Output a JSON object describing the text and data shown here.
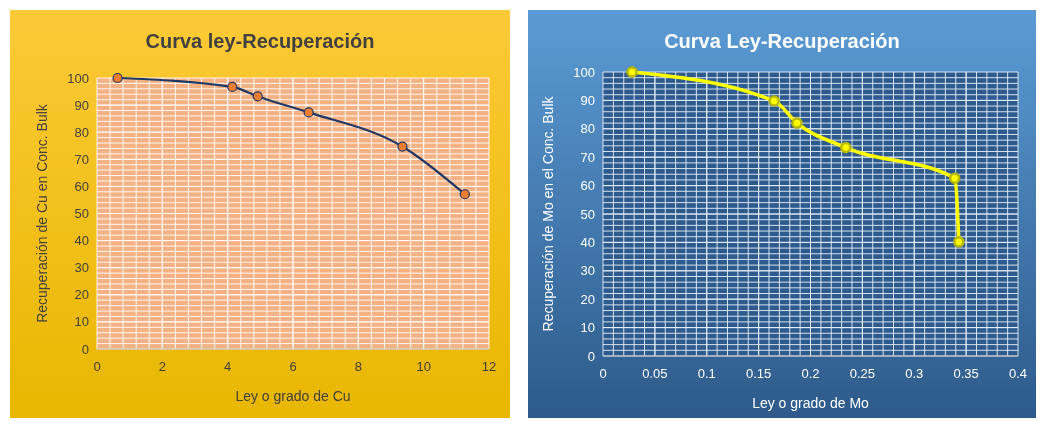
{
  "chart_data": [
    {
      "type": "line",
      "title": "Curva ley-Recuperación",
      "xlabel": "Ley o grado de Cu",
      "ylabel": "Recuperación de Cu en Conc. Bulk",
      "xlim": [
        0,
        12
      ],
      "xticks": [
        0,
        2,
        4,
        6,
        8,
        10,
        12
      ],
      "ylim": [
        0,
        100
      ],
      "yticks": [
        0,
        10,
        20,
        30,
        40,
        50,
        60,
        70,
        80,
        90,
        100
      ],
      "grid": true,
      "marker": "circle",
      "series": [
        {
          "color": "#1f3864",
          "colors": [
            "#ed7d31",
            "#ed7d31",
            "#ed7d31",
            "#ed7d31",
            "#ed7d31",
            "#ed7d31"
          ],
          "x": [
            0.63,
            4.14,
            4.92,
            6.48,
            9.35,
            11.26
          ],
          "values": [
            100,
            96.7,
            93.2,
            87.3,
            74.7,
            57.1
          ]
        }
      ]
    },
    {
      "type": "line",
      "title": "Curva Ley-Recuperación",
      "xlabel": "Ley o grado de Mo",
      "ylabel": "Recuperación de Mo en el Conc. Bulk",
      "xlim": [
        0,
        0.4
      ],
      "xticks": [
        0,
        0.05,
        0.1,
        0.15,
        0.2,
        0.25,
        0.3,
        0.35,
        0.4
      ],
      "ylim": [
        0,
        100
      ],
      "yticks": [
        0,
        10,
        20,
        30,
        40,
        50,
        60,
        70,
        80,
        90,
        100
      ],
      "grid": true,
      "marker": "circle",
      "series": [
        {
          "color": "#ffff00",
          "colors": [
            "#ffff00",
            "#ffff00",
            "#ffff00",
            "#ffff00",
            "#ffff00",
            "#ffff00"
          ],
          "x": [
            0.028,
            0.165,
            0.187,
            0.234,
            0.339,
            0.343
          ],
          "values": [
            100,
            89.8,
            82,
            73.4,
            62.6,
            40.2
          ]
        }
      ]
    }
  ]
}
